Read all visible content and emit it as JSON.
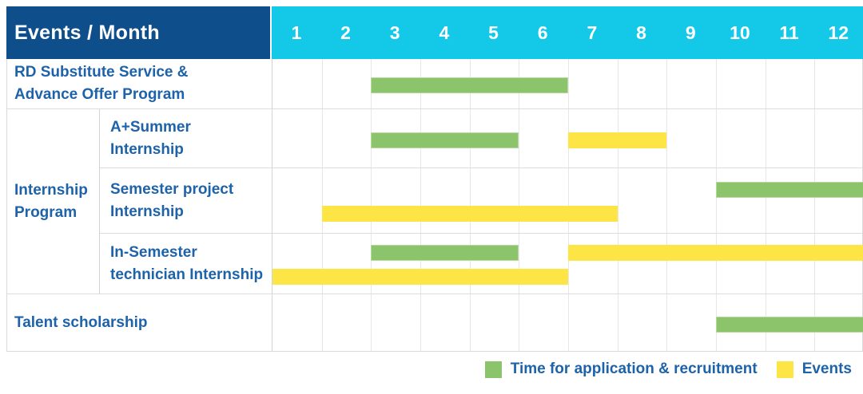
{
  "header": {
    "label": "Events / Month",
    "months": [
      "1",
      "2",
      "3",
      "4",
      "5",
      "6",
      "7",
      "8",
      "9",
      "10",
      "11",
      "12"
    ]
  },
  "legend": {
    "items": [
      {
        "key": "green",
        "label": "Time for application & recruitment"
      },
      {
        "key": "yellow",
        "label": "Events"
      }
    ]
  },
  "colors": {
    "header_navy": "#0E4F8B",
    "header_cyan": "#14C9E8",
    "label_blue": "#1E63A9",
    "bar_green": "#8BC46A",
    "bar_yellow": "#FDE546"
  },
  "chart_data": {
    "type": "table",
    "subtype": "gantt",
    "title": "Events / Month",
    "x_axis": {
      "unit": "month",
      "ticks": [
        1,
        2,
        3,
        4,
        5,
        6,
        7,
        8,
        9,
        10,
        11,
        12
      ]
    },
    "legend": {
      "green": "Time for application & recruitment",
      "yellow": "Events"
    },
    "rows": [
      {
        "group": null,
        "label": "RD Substitute Service & Advance Offer Program",
        "label_lines": [
          "RD Substitute Service &",
          "Advance Offer Program"
        ],
        "bars": [
          {
            "series": "Time for application & recruitment",
            "color": "green",
            "start_month": 3,
            "end_month": 6,
            "lane": "single"
          }
        ]
      },
      {
        "group": "Internship Program",
        "group_lines": [
          "Internship",
          "Program"
        ],
        "label": "A+Summer Internship",
        "label_lines": [
          "A+Summer",
          "Internship"
        ],
        "bars": [
          {
            "series": "Time for application & recruitment",
            "color": "green",
            "start_month": 3,
            "end_month": 5,
            "lane": "single"
          },
          {
            "series": "Events",
            "color": "yellow",
            "start_month": 7,
            "end_month": 8,
            "lane": "single"
          }
        ]
      },
      {
        "group": "Internship Program",
        "label": "Semester project Internship",
        "label_lines": [
          "Semester project",
          "Internship"
        ],
        "bars": [
          {
            "series": "Time for application & recruitment",
            "color": "green",
            "start_month": 10,
            "end_month": 12,
            "lane": "top"
          },
          {
            "series": "Events",
            "color": "yellow",
            "start_month": 2,
            "end_month": 7,
            "lane": "bottom"
          }
        ]
      },
      {
        "group": "Internship Program",
        "label": "In-Semester technician Internship",
        "label_lines": [
          "In-Semester",
          "technician Internship"
        ],
        "bars": [
          {
            "series": "Time for application & recruitment",
            "color": "green",
            "start_month": 3,
            "end_month": 5,
            "lane": "top"
          },
          {
            "series": "Events",
            "color": "yellow",
            "start_month": 7,
            "end_month": 12,
            "lane": "top"
          },
          {
            "series": "Events",
            "color": "yellow",
            "start_month": 1,
            "end_month": 6,
            "lane": "bottom"
          }
        ]
      },
      {
        "group": null,
        "label": "Talent scholarship",
        "label_lines": [
          "Talent scholarship"
        ],
        "bars": [
          {
            "series": "Time for application & recruitment",
            "color": "green",
            "start_month": 10,
            "end_month": 12,
            "lane": "single"
          }
        ]
      }
    ]
  }
}
